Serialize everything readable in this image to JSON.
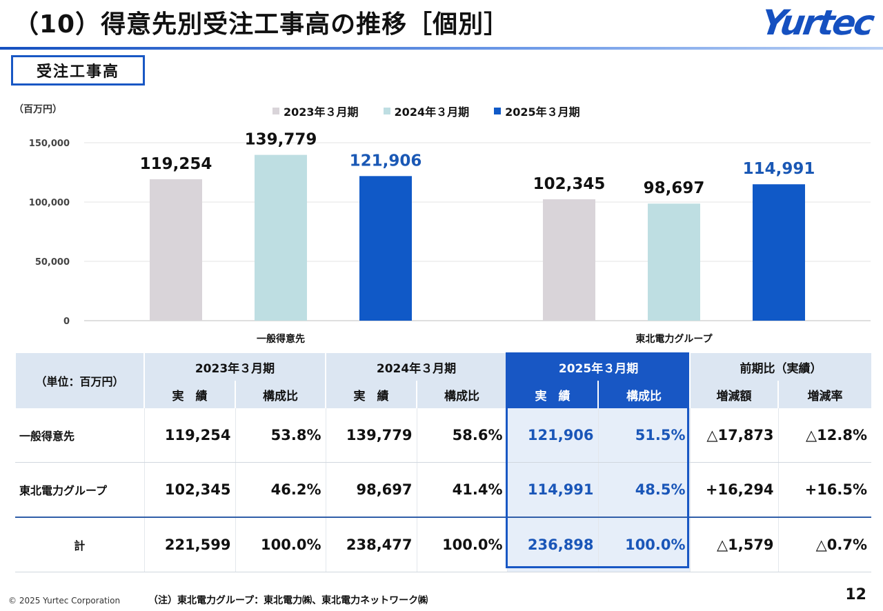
{
  "header": {
    "title": "（10）得意先別受注工事高の推移［個別］",
    "logo_text": "Yurtec",
    "section_label": "受注工事高"
  },
  "chart_data": {
    "type": "bar",
    "unit_label": "（百万円）",
    "categories": [
      "一般得意先",
      "東北電力グループ"
    ],
    "series": [
      {
        "name": "2023年３月期",
        "values": [
          119254,
          102345
        ],
        "color": "#d9d4d9",
        "label_color": "#111111"
      },
      {
        "name": "2024年３月期",
        "values": [
          139779,
          98697
        ],
        "color": "#bedee2",
        "label_color": "#111111"
      },
      {
        "name": "2025年３月期",
        "values": [
          121906,
          114991
        ],
        "color": "#1059c7",
        "label_color": "#1a58b5"
      }
    ],
    "yticks": [
      0,
      50000,
      100000,
      150000
    ],
    "ylim": [
      0,
      150000
    ],
    "grid": true,
    "legend_position": "top"
  },
  "table": {
    "corner_label": "（単位：百万円）",
    "periods": [
      "2023年３月期",
      "2024年３月期",
      "2025年３月期",
      "前期比（実績）"
    ],
    "subheaders": [
      "実　績",
      "構成比",
      "実　績",
      "構成比",
      "実　績",
      "構成比",
      "増減額",
      "増減率"
    ],
    "rows": [
      {
        "label": "一般得意先",
        "cells": [
          "119,254",
          "53.8%",
          "139,779",
          "58.6%",
          "121,906",
          "51.5%",
          "△17,873",
          "△12.8%"
        ]
      },
      {
        "label": "東北電力グループ",
        "cells": [
          "102,345",
          "46.2%",
          "98,697",
          "41.4%",
          "114,991",
          "48.5%",
          "+16,294",
          "+16.5%"
        ]
      },
      {
        "label": "計",
        "cells": [
          "221,599",
          "100.0%",
          "238,477",
          "100.0%",
          "236,898",
          "100.0%",
          "△1,579",
          "△0.7%"
        ]
      }
    ]
  },
  "footer": {
    "copyright": "© 2025 Yurtec Corporation",
    "note": "（注）東北電力グループ：東北電力㈱、東北電力ネットワーク㈱",
    "page_number": "12"
  },
  "colors": {
    "accent": "#1857c4",
    "header_bg": "#dce6f2",
    "highlight_bg": "#e6eef9"
  }
}
